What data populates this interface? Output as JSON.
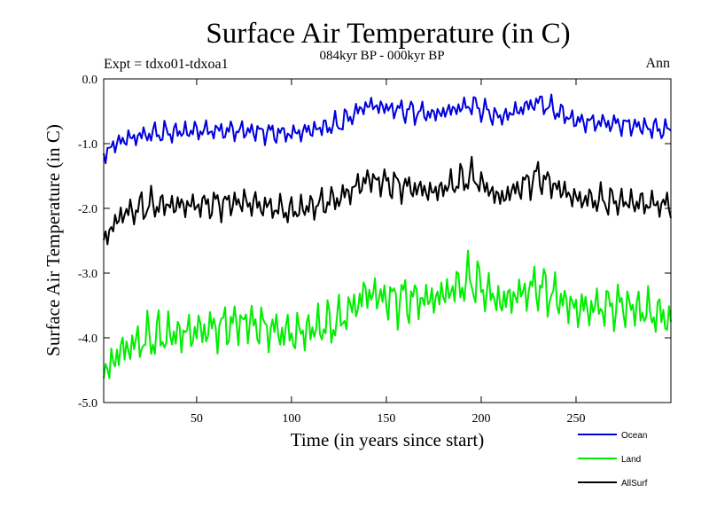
{
  "chart_data": {
    "type": "line",
    "title": "Surface Air Temperature (in C)",
    "subtitle": "084kyr BP - 000kyr BP",
    "experiment": "Expt = tdxo01-tdxoa1",
    "season": "Ann",
    "xlabel": "Time (in years since start)",
    "ylabel": "Surface Air Temperature (in C)",
    "xlim": [
      1,
      300
    ],
    "ylim": [
      -5.0,
      0.0
    ],
    "xticks": [
      50,
      100,
      150,
      200,
      250
    ],
    "xtick_labels": [
      "50",
      "100",
      "150",
      "200",
      "250"
    ],
    "yticks": [
      0.0,
      -1.0,
      -2.0,
      -3.0,
      -4.0,
      -5.0
    ],
    "ytick_labels": [
      "0.0",
      "-1.0",
      "-2.0",
      "-3.0",
      "-4.0",
      "-5.0"
    ],
    "legend_position": "bottom-right",
    "series": [
      {
        "name": "Ocean",
        "color": "#0000dd",
        "sample_x": [
          1,
          10,
          25,
          50,
          75,
          100,
          125,
          140,
          150,
          175,
          195,
          210,
          230,
          250,
          275,
          300
        ],
        "sample_y": [
          -1.15,
          -0.95,
          -0.85,
          -0.8,
          -0.8,
          -0.85,
          -0.7,
          -0.4,
          -0.45,
          -0.55,
          -0.4,
          -0.6,
          -0.35,
          -0.65,
          -0.7,
          -0.8
        ]
      },
      {
        "name": "Land",
        "color": "#00ee00",
        "sample_x": [
          1,
          10,
          25,
          50,
          75,
          100,
          125,
          140,
          150,
          175,
          195,
          210,
          230,
          250,
          275,
          300
        ],
        "sample_y": [
          -4.55,
          -4.2,
          -4.0,
          -3.9,
          -3.75,
          -3.95,
          -3.75,
          -3.3,
          -3.4,
          -3.4,
          -3.1,
          -3.45,
          -3.2,
          -3.55,
          -3.5,
          -3.7
        ]
      },
      {
        "name": "AllSurf",
        "color": "#000000",
        "sample_x": [
          1,
          10,
          25,
          50,
          75,
          100,
          125,
          140,
          150,
          175,
          195,
          210,
          230,
          250,
          275,
          300
        ],
        "sample_y": [
          -2.5,
          -2.1,
          -1.95,
          -1.95,
          -1.9,
          -2.05,
          -1.85,
          -1.55,
          -1.6,
          -1.75,
          -1.5,
          -1.85,
          -1.5,
          -1.85,
          -1.9,
          -1.95
        ]
      }
    ]
  }
}
